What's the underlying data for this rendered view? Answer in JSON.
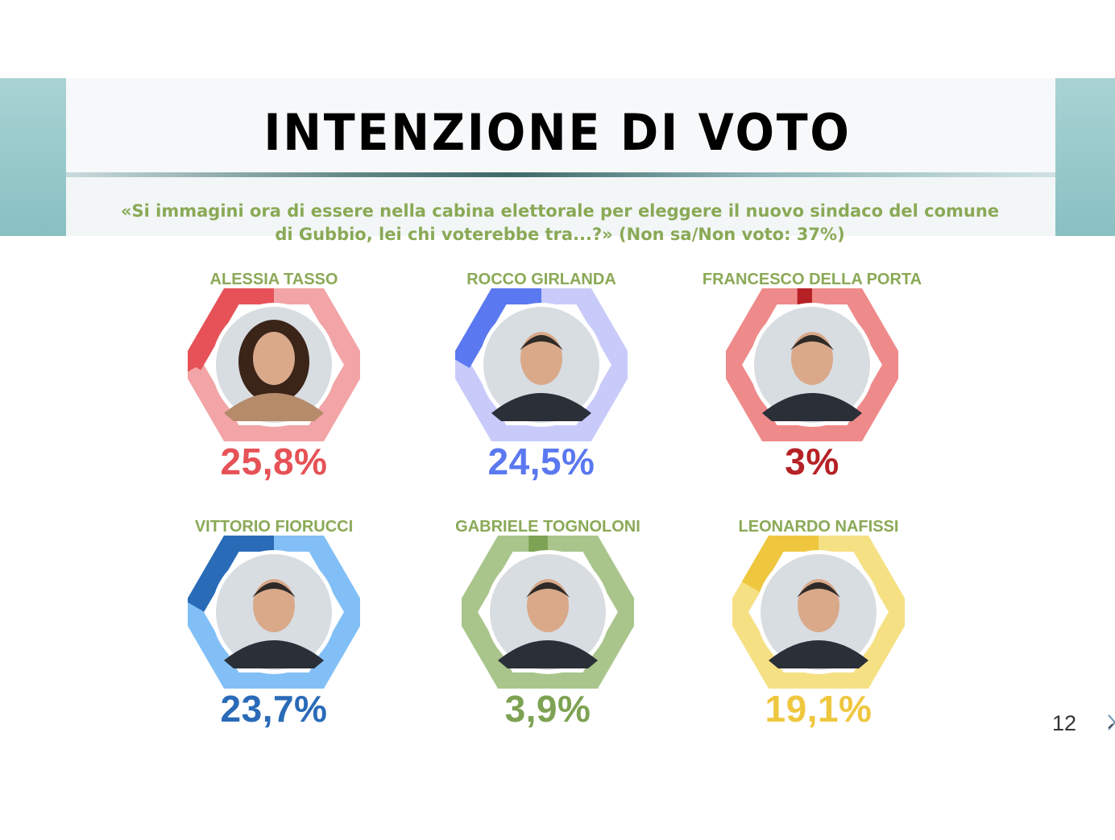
{
  "header": {
    "title": "INTENZIONE DI VOTO",
    "subtitle_line1": "«Si immagini ora di essere nella cabina elettorale per eleggere il nuovo sindaco del comune",
    "subtitle_line2": "di Gubbio, lei chi voterebbe tra...?» (Non sa/Non voto: 37%)"
  },
  "page_number": "12",
  "colors": {
    "title": "#000000",
    "subtitle": "#8aa956",
    "name_labels": "#8aa956",
    "band": "#89c0c2"
  },
  "candidates": [
    {
      "name": "ALESSIA TASSO",
      "pct_label": "25,8%",
      "color": "#e65257",
      "light": "#f2a4a6",
      "photo": "woman-portrait"
    },
    {
      "name": "ROCCO GIRLANDA",
      "pct_label": "24,5%",
      "color": "#5a78f0",
      "light": "#c8cbfa",
      "photo": "man-portrait"
    },
    {
      "name": "FRANCESCO DELLA PORTA",
      "pct_label": "3%",
      "color": "#b62126",
      "light": "#ef8a8a",
      "photo": "man-portrait"
    },
    {
      "name": "VITTORIO FIORUCCI",
      "pct_label": "23,7%",
      "color": "#2a6bb8",
      "light": "#82bff6",
      "photo": "man-portrait"
    },
    {
      "name": "GABRIELE TOGNOLONI",
      "pct_label": "3,9%",
      "color": "#7ea253",
      "light": "#a9c58b",
      "photo": "man-portrait"
    },
    {
      "name": "LEONARDO NAFISSI",
      "pct_label": "19,1%",
      "color": "#efc73f",
      "light": "#f5e084",
      "photo": "man-portrait"
    }
  ],
  "chart_data": {
    "type": "pie",
    "title": "INTENZIONE DI VOTO",
    "categories": [
      "ALESSIA TASSO",
      "ROCCO GIRLANDA",
      "FRANCESCO DELLA PORTA",
      "VITTORIO FIORUCCI",
      "GABRIELE TOGNOLONI",
      "LEONARDO NAFISSI"
    ],
    "values": [
      25.8,
      24.5,
      3,
      23.7,
      3.9,
      19.1
    ],
    "unit": "%"
  }
}
